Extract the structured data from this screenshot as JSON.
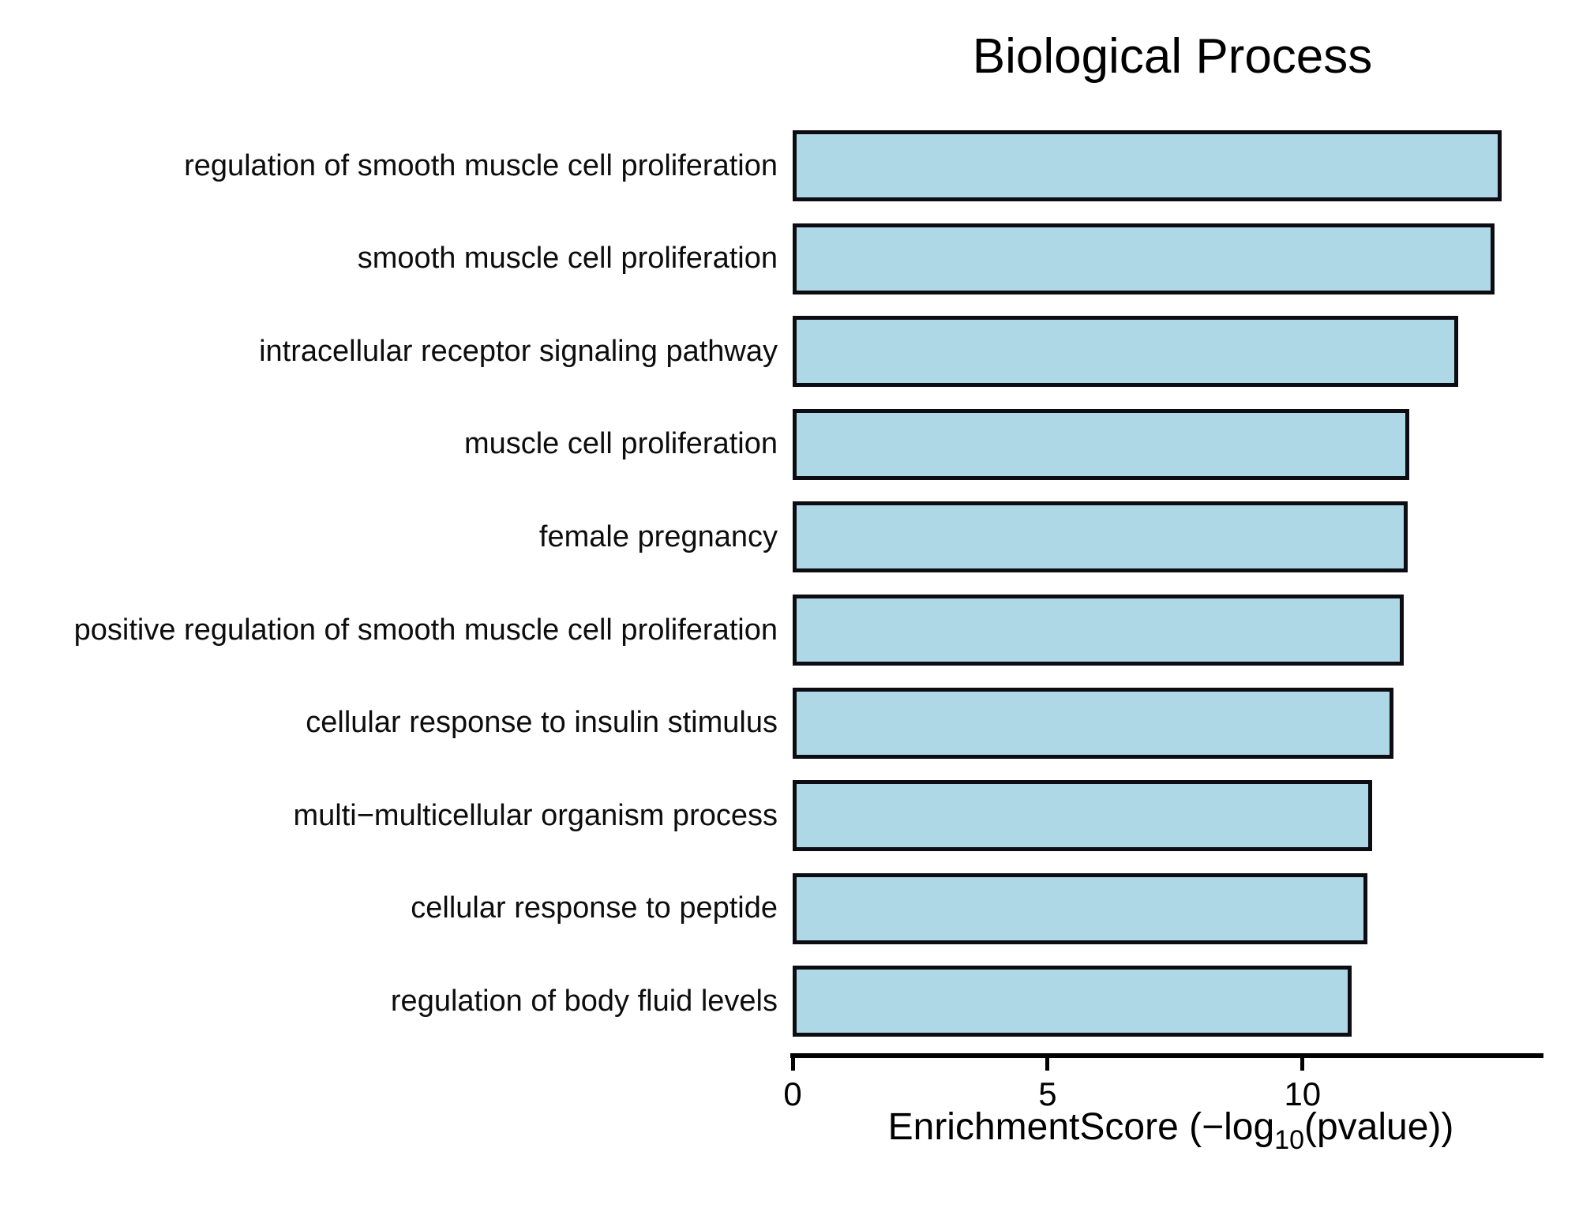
{
  "chart_data": {
    "type": "bar",
    "orientation": "horizontal",
    "title": "Biological Process",
    "categories": [
      "regulation of smooth muscle cell proliferation",
      "smooth muscle cell proliferation",
      "intracellular receptor signaling pathway",
      "muscle cell proliferation",
      "female pregnancy",
      "positive regulation of smooth muscle cell proliferation",
      "cellular response to insulin stimulus",
      "multi−multicellular organism process",
      "cellular response to peptide",
      "regulation of body fluid levels"
    ],
    "values": [
      13.9,
      13.76,
      13.06,
      12.09,
      12.06,
      11.98,
      11.79,
      11.36,
      11.28,
      10.96
    ],
    "xlabel": "EnrichmentScore (−log10(pvalue))",
    "xlabel_parts": {
      "prefix": "EnrichmentScore (−log",
      "sub": "10",
      "suffix": "(pvalue))"
    },
    "xticks": [
      {
        "value": 0,
        "label": "0"
      },
      {
        "value": 5,
        "label": "5"
      },
      {
        "value": 10,
        "label": "10"
      }
    ],
    "xlim": [
      0,
      14.71
    ],
    "bar_fill": "#aed8e6",
    "bar_border": "#0c0c12",
    "grid": false,
    "legend": false
  }
}
